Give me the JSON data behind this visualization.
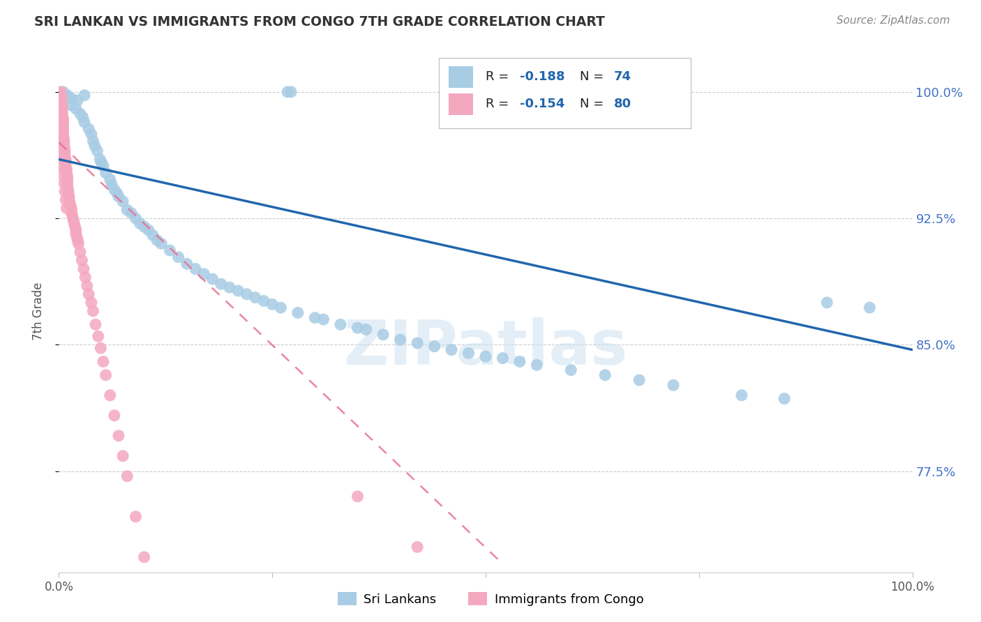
{
  "title": "SRI LANKAN VS IMMIGRANTS FROM CONGO 7TH GRADE CORRELATION CHART",
  "source": "Source: ZipAtlas.com",
  "ylabel": "7th Grade",
  "xlim": [
    0.0,
    1.0
  ],
  "ylim": [
    0.715,
    1.025
  ],
  "ytick_positions": [
    0.775,
    0.85,
    0.925,
    1.0
  ],
  "ytick_labels": [
    "77.5%",
    "85.0%",
    "92.5%",
    "100.0%"
  ],
  "xtick_positions": [
    0.0,
    0.25,
    0.5,
    0.75,
    1.0
  ],
  "legend_r_blue": "-0.188",
  "legend_n_blue": "74",
  "legend_r_pink": "-0.154",
  "legend_n_pink": "80",
  "blue_color": "#a8cce4",
  "pink_color": "#f4a8bf",
  "trend_blue_color": "#2166ac",
  "trend_pink_color": "#e87090",
  "watermark": "ZIPatlas",
  "blue_scatter_x": [
    0.005,
    0.01,
    0.015,
    0.015,
    0.02,
    0.022,
    0.025,
    0.028,
    0.03,
    0.03,
    0.035,
    0.038,
    0.04,
    0.042,
    0.045,
    0.048,
    0.05,
    0.052,
    0.055,
    0.06,
    0.062,
    0.065,
    0.068,
    0.07,
    0.075,
    0.08,
    0.085,
    0.09,
    0.095,
    0.1,
    0.105,
    0.11,
    0.115,
    0.12,
    0.13,
    0.14,
    0.15,
    0.16,
    0.17,
    0.18,
    0.19,
    0.2,
    0.21,
    0.22,
    0.23,
    0.24,
    0.25,
    0.26,
    0.28,
    0.3,
    0.31,
    0.33,
    0.35,
    0.36,
    0.38,
    0.4,
    0.42,
    0.44,
    0.46,
    0.48,
    0.5,
    0.52,
    0.54,
    0.56,
    0.6,
    0.64,
    0.68,
    0.72,
    0.8,
    0.85,
    0.9,
    0.95,
    0.268,
    0.272
  ],
  "blue_scatter_y": [
    1.0,
    0.998,
    0.996,
    0.992,
    0.99,
    0.995,
    0.987,
    0.985,
    0.982,
    0.998,
    0.978,
    0.975,
    0.971,
    0.968,
    0.965,
    0.96,
    0.958,
    0.956,
    0.952,
    0.948,
    0.945,
    0.942,
    0.94,
    0.938,
    0.935,
    0.93,
    0.928,
    0.925,
    0.922,
    0.92,
    0.918,
    0.915,
    0.912,
    0.91,
    0.906,
    0.902,
    0.898,
    0.895,
    0.892,
    0.889,
    0.886,
    0.884,
    0.882,
    0.88,
    0.878,
    0.876,
    0.874,
    0.872,
    0.869,
    0.866,
    0.865,
    0.862,
    0.86,
    0.859,
    0.856,
    0.853,
    0.851,
    0.849,
    0.847,
    0.845,
    0.843,
    0.842,
    0.84,
    0.838,
    0.835,
    0.832,
    0.829,
    0.826,
    0.82,
    0.818,
    0.875,
    0.872,
    1.0,
    1.0
  ],
  "pink_scatter_x": [
    0.002,
    0.002,
    0.003,
    0.003,
    0.003,
    0.004,
    0.004,
    0.004,
    0.004,
    0.005,
    0.005,
    0.005,
    0.005,
    0.005,
    0.005,
    0.005,
    0.006,
    0.006,
    0.006,
    0.007,
    0.007,
    0.007,
    0.008,
    0.008,
    0.008,
    0.009,
    0.009,
    0.01,
    0.01,
    0.01,
    0.01,
    0.011,
    0.011,
    0.012,
    0.012,
    0.013,
    0.014,
    0.015,
    0.015,
    0.016,
    0.017,
    0.018,
    0.019,
    0.02,
    0.02,
    0.021,
    0.022,
    0.023,
    0.025,
    0.027,
    0.029,
    0.031,
    0.033,
    0.035,
    0.038,
    0.04,
    0.043,
    0.046,
    0.049,
    0.052,
    0.055,
    0.06,
    0.065,
    0.07,
    0.075,
    0.08,
    0.09,
    0.1,
    0.002,
    0.002,
    0.003,
    0.003,
    0.004,
    0.005,
    0.006,
    0.007,
    0.008,
    0.009,
    0.35,
    0.42
  ],
  "pink_scatter_y": [
    1.0,
    0.998,
    0.997,
    0.995,
    0.993,
    0.991,
    0.989,
    0.987,
    0.985,
    0.984,
    0.983,
    0.981,
    0.979,
    0.977,
    0.975,
    0.973,
    0.972,
    0.97,
    0.968,
    0.966,
    0.964,
    0.962,
    0.96,
    0.958,
    0.956,
    0.954,
    0.952,
    0.95,
    0.948,
    0.946,
    0.944,
    0.942,
    0.94,
    0.938,
    0.936,
    0.934,
    0.932,
    0.93,
    0.928,
    0.926,
    0.924,
    0.922,
    0.92,
    0.918,
    0.916,
    0.914,
    0.912,
    0.91,
    0.905,
    0.9,
    0.895,
    0.89,
    0.885,
    0.88,
    0.875,
    0.87,
    0.862,
    0.855,
    0.848,
    0.84,
    0.832,
    0.82,
    0.808,
    0.796,
    0.784,
    0.772,
    0.748,
    0.724,
    0.976,
    0.971,
    0.966,
    0.961,
    0.956,
    0.951,
    0.946,
    0.941,
    0.936,
    0.931,
    0.76,
    0.73
  ],
  "blue_trend_x": [
    0.0,
    1.0
  ],
  "blue_trend_y": [
    0.96,
    0.847
  ],
  "pink_trend_x": [
    0.0,
    0.52
  ],
  "pink_trend_y": [
    0.97,
    0.72
  ]
}
